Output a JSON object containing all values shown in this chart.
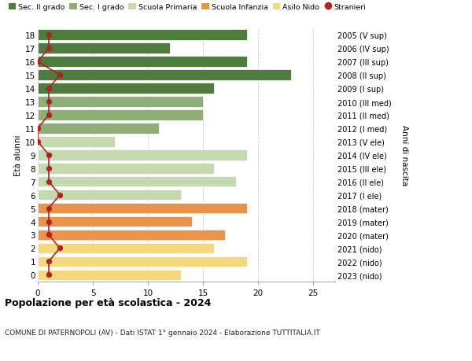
{
  "ages": [
    0,
    1,
    2,
    3,
    4,
    5,
    6,
    7,
    8,
    9,
    10,
    11,
    12,
    13,
    14,
    15,
    16,
    17,
    18
  ],
  "bar_values": [
    13,
    19,
    16,
    17,
    14,
    19,
    13,
    18,
    16,
    19,
    7,
    11,
    15,
    15,
    16,
    23,
    19,
    12,
    19
  ],
  "bar_colors": [
    "#f5d77e",
    "#f5d77e",
    "#f5d77e",
    "#e8924a",
    "#e8924a",
    "#e8924a",
    "#c5d9b0",
    "#c5d9b0",
    "#c5d9b0",
    "#c5d9b0",
    "#c5d9b0",
    "#8fae76",
    "#8fae76",
    "#8fae76",
    "#4e7c3e",
    "#4e7c3e",
    "#4e7c3e",
    "#4e7c3e",
    "#4e7c3e"
  ],
  "stranieri_values": [
    1,
    1,
    2,
    1,
    1,
    1,
    2,
    1,
    1,
    1,
    0,
    0,
    1,
    1,
    1,
    2,
    0,
    1,
    1
  ],
  "right_labels": [
    "2023 (nido)",
    "2022 (nido)",
    "2021 (nido)",
    "2020 (mater)",
    "2019 (mater)",
    "2018 (mater)",
    "2017 (I ele)",
    "2016 (II ele)",
    "2015 (III ele)",
    "2014 (IV ele)",
    "2013 (V ele)",
    "2012 (I med)",
    "2011 (II med)",
    "2010 (III med)",
    "2009 (I sup)",
    "2008 (II sup)",
    "2007 (III sup)",
    "2006 (IV sup)",
    "2005 (V sup)"
  ],
  "legend_labels": [
    "Sec. II grado",
    "Sec. I grado",
    "Scuola Primaria",
    "Scuola Infanzia",
    "Asilo Nido",
    "Stranieri"
  ],
  "legend_colors": [
    "#4e7c3e",
    "#8fae76",
    "#c5d9b0",
    "#e8924a",
    "#f5d77e",
    "#b22222"
  ],
  "ylabel_right": "Anni di nascita",
  "title": "Popolazione per eta scolastica - 2024",
  "title_display": "Popolazione per età scolastica - 2024",
  "subtitle": "COMUNE DI PATERNOPOLI (AV) - Dati ISTAT 1° gennaio 2024 - Elaborazione TUTTITALIA.IT",
  "xlim": [
    0,
    27
  ],
  "bar_height": 0.8,
  "stranieri_color": "#b22222",
  "grid_color": "#cccccc",
  "bg_color": "#ffffff"
}
